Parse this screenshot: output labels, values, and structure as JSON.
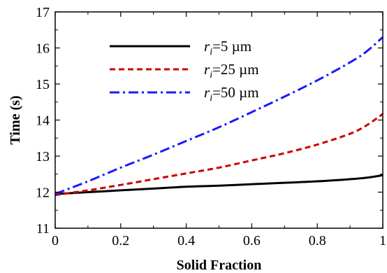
{
  "chart_data": {
    "type": "line",
    "xlabel": "Solid Fraction",
    "ylabel": "Time (s)",
    "xlim": [
      0,
      1
    ],
    "ylim": [
      11,
      17
    ],
    "xticks": [
      0,
      0.2,
      0.4,
      0.6,
      0.8,
      1
    ],
    "xtick_labels": [
      "0",
      "0.2",
      "0.4",
      "0.6",
      "0.8",
      "1"
    ],
    "yticks": [
      11,
      12,
      13,
      14,
      15,
      16,
      17
    ],
    "ytick_labels": [
      "11",
      "12",
      "13",
      "14",
      "15",
      "16",
      "17"
    ],
    "grid": false,
    "legend_position": "upper-left",
    "series": [
      {
        "name_sym": "r",
        "name_sub": "i",
        "name_rest": "=5 µm",
        "color": "#000000",
        "style": "solid",
        "x": [
          0,
          0.1,
          0.2,
          0.3,
          0.4,
          0.5,
          0.6,
          0.7,
          0.8,
          0.9,
          0.95,
          1.0
        ],
        "y": [
          11.95,
          12.0,
          12.05,
          12.1,
          12.15,
          12.18,
          12.22,
          12.26,
          12.3,
          12.36,
          12.4,
          12.47
        ]
      },
      {
        "name_sym": "r",
        "name_sub": "i",
        "name_rest": "=25 µm",
        "color": "#cc0000",
        "style": "dashed",
        "x": [
          0,
          0.1,
          0.2,
          0.3,
          0.4,
          0.5,
          0.6,
          0.7,
          0.8,
          0.9,
          0.95,
          1.0
        ],
        "y": [
          11.92,
          12.05,
          12.2,
          12.36,
          12.52,
          12.68,
          12.88,
          13.08,
          13.32,
          13.62,
          13.85,
          14.17
        ]
      },
      {
        "name_sym": "r",
        "name_sub": "i",
        "name_rest": "=50 µm",
        "color": "#1a1aff",
        "style": "dashdot",
        "x": [
          0,
          0.1,
          0.2,
          0.3,
          0.4,
          0.5,
          0.6,
          0.7,
          0.8,
          0.9,
          0.95,
          1.0
        ],
        "y": [
          11.95,
          12.3,
          12.68,
          13.04,
          13.42,
          13.8,
          14.22,
          14.65,
          15.1,
          15.6,
          15.9,
          16.3
        ]
      }
    ]
  }
}
